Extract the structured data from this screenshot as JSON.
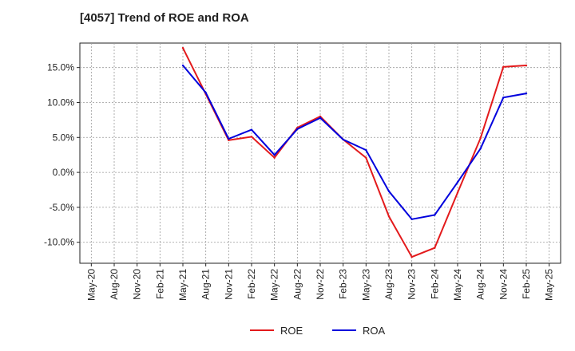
{
  "chart_data": {
    "type": "line",
    "title": "[4057]  Trend of ROE and ROA",
    "xlabel": "",
    "ylabel": "",
    "x_ticks": [
      "May-20",
      "Aug-20",
      "Nov-20",
      "Feb-21",
      "May-21",
      "Aug-21",
      "Nov-21",
      "Feb-22",
      "May-22",
      "Aug-22",
      "Nov-22",
      "Feb-23",
      "May-23",
      "Aug-23",
      "Nov-23",
      "Feb-24",
      "May-24",
      "Aug-24",
      "Nov-24",
      "Feb-25",
      "May-25"
    ],
    "y_ticks": [
      "15.0%",
      "10.0%",
      "5.0%",
      "0.0%",
      "-5.0%",
      "-10.0%"
    ],
    "y_tick_values": [
      15,
      10,
      5,
      0,
      -5,
      -10
    ],
    "ylim": [
      -13,
      18.5
    ],
    "x_grid": true,
    "y_grid": true,
    "legend_position": "bottom-center",
    "x": [
      "May-21",
      "Aug-21",
      "Nov-21",
      "Feb-22",
      "May-22",
      "Aug-22",
      "Nov-22",
      "Feb-23",
      "May-23",
      "Aug-23",
      "Nov-23",
      "Feb-24",
      "May-24",
      "Aug-24",
      "Nov-24",
      "Feb-25"
    ],
    "series": [
      {
        "name": "ROE",
        "color": "#e31a1c",
        "values": [
          17.8,
          11.2,
          4.6,
          5.1,
          2.1,
          6.4,
          8.0,
          4.7,
          2.1,
          -6.3,
          -12.1,
          -10.8,
          -2.9,
          4.9,
          15.1,
          15.3
        ]
      },
      {
        "name": "ROA",
        "color": "#0000dd",
        "values": [
          15.3,
          11.4,
          4.8,
          6.1,
          2.5,
          6.2,
          7.8,
          4.7,
          3.2,
          -2.7,
          -6.7,
          -6.1,
          -1.4,
          3.4,
          10.7,
          11.3
        ]
      }
    ]
  }
}
